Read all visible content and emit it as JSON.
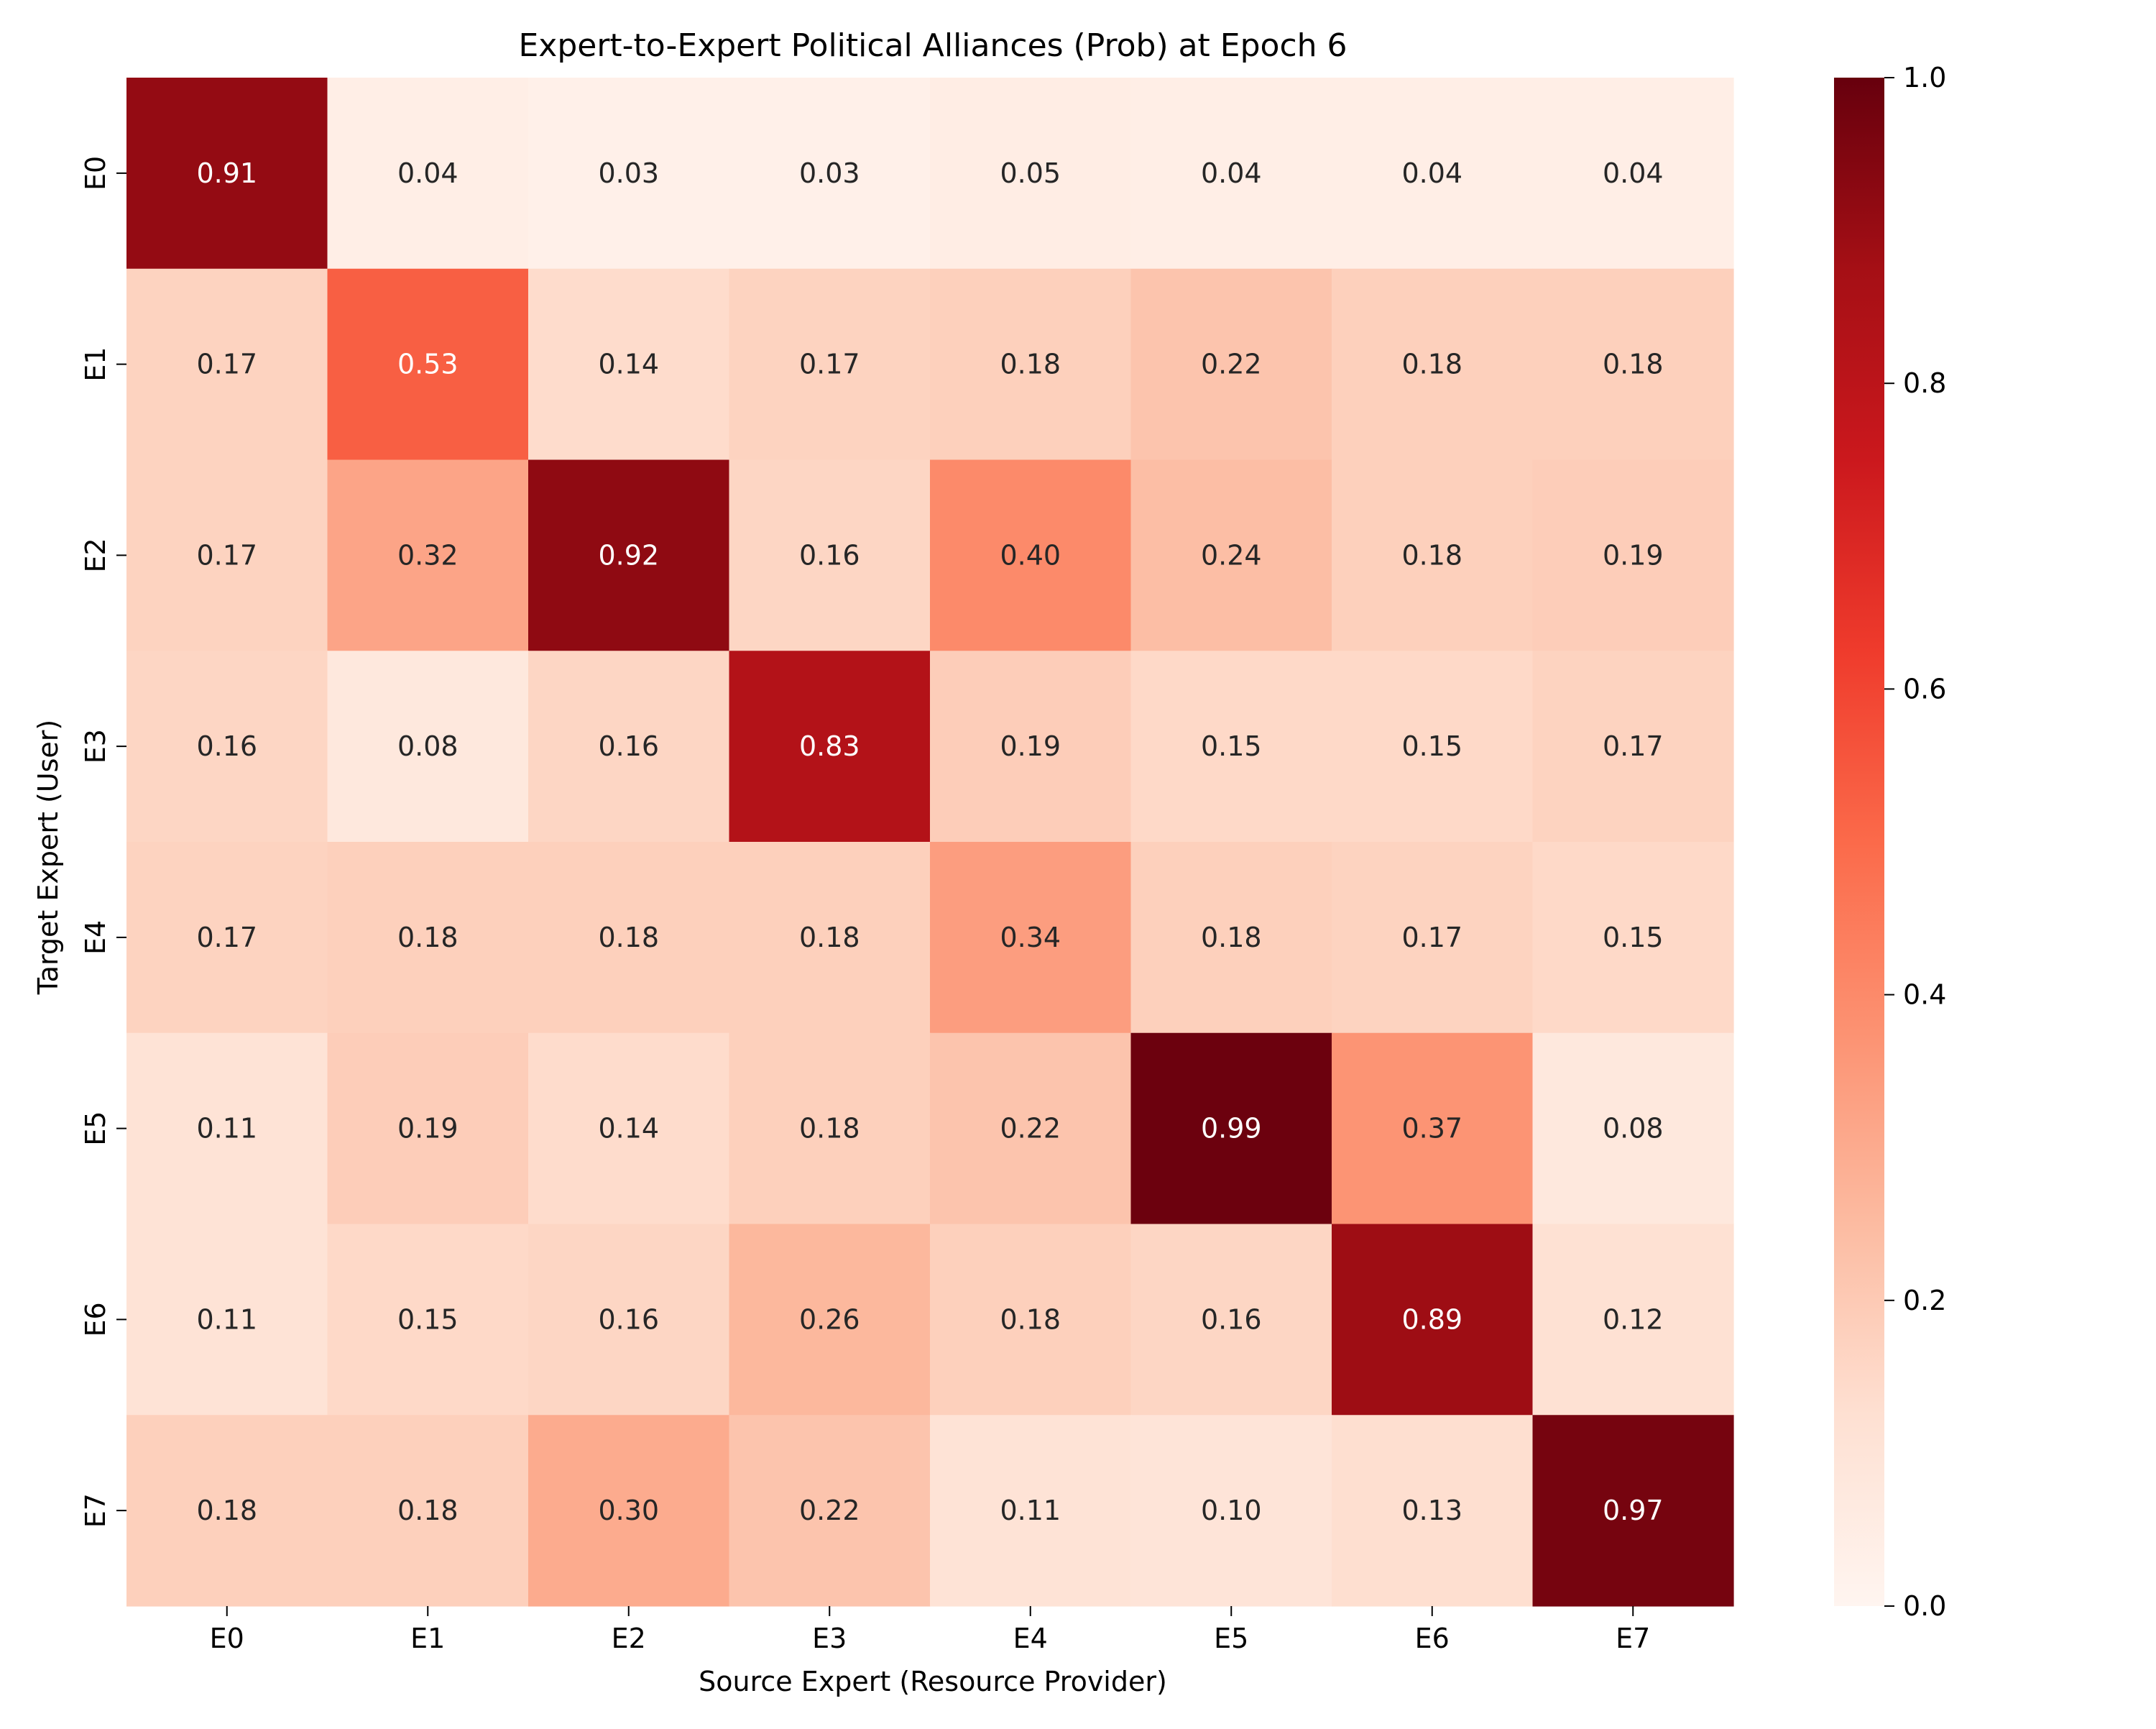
{
  "chart_data": {
    "type": "heatmap",
    "title": "Expert-to-Expert Political Alliances (Prob) at Epoch 6",
    "xlabel": "Source Expert (Resource Provider)",
    "ylabel": "Target Expert (User)",
    "x_categories": [
      "E0",
      "E1",
      "E2",
      "E3",
      "E4",
      "E5",
      "E6",
      "E7"
    ],
    "y_categories": [
      "E0",
      "E1",
      "E2",
      "E3",
      "E4",
      "E5",
      "E6",
      "E7"
    ],
    "values": [
      [
        0.91,
        0.04,
        0.03,
        0.03,
        0.05,
        0.04,
        0.04,
        0.04
      ],
      [
        0.17,
        0.53,
        0.14,
        0.17,
        0.18,
        0.22,
        0.18,
        0.18
      ],
      [
        0.17,
        0.32,
        0.92,
        0.16,
        0.4,
        0.24,
        0.18,
        0.19
      ],
      [
        0.16,
        0.08,
        0.16,
        0.83,
        0.19,
        0.15,
        0.15,
        0.17
      ],
      [
        0.17,
        0.18,
        0.18,
        0.18,
        0.34,
        0.18,
        0.17,
        0.15
      ],
      [
        0.11,
        0.19,
        0.14,
        0.18,
        0.22,
        0.99,
        0.37,
        0.08
      ],
      [
        0.11,
        0.15,
        0.16,
        0.26,
        0.18,
        0.16,
        0.89,
        0.12
      ],
      [
        0.18,
        0.18,
        0.3,
        0.22,
        0.11,
        0.1,
        0.13,
        0.97
      ]
    ],
    "value_format": "0.00",
    "colormap": "Reds",
    "vmin": 0.0,
    "vmax": 1.0,
    "colorbar": {
      "ticks": [
        0.0,
        0.2,
        0.4,
        0.6,
        0.8,
        1.0
      ],
      "tick_labels": [
        "0.0",
        "0.2",
        "0.4",
        "0.6",
        "0.8",
        "1.0"
      ],
      "placement": "right"
    },
    "grid": false
  },
  "colors": {
    "reds_scale": [
      "#fff5f0",
      "#fee0d2",
      "#fcbba1",
      "#fc9272",
      "#fb6a4a",
      "#ef3b2c",
      "#cb181d",
      "#a50f15",
      "#67000d"
    ],
    "label_dark": "#262626",
    "label_light": "#ffffff"
  }
}
